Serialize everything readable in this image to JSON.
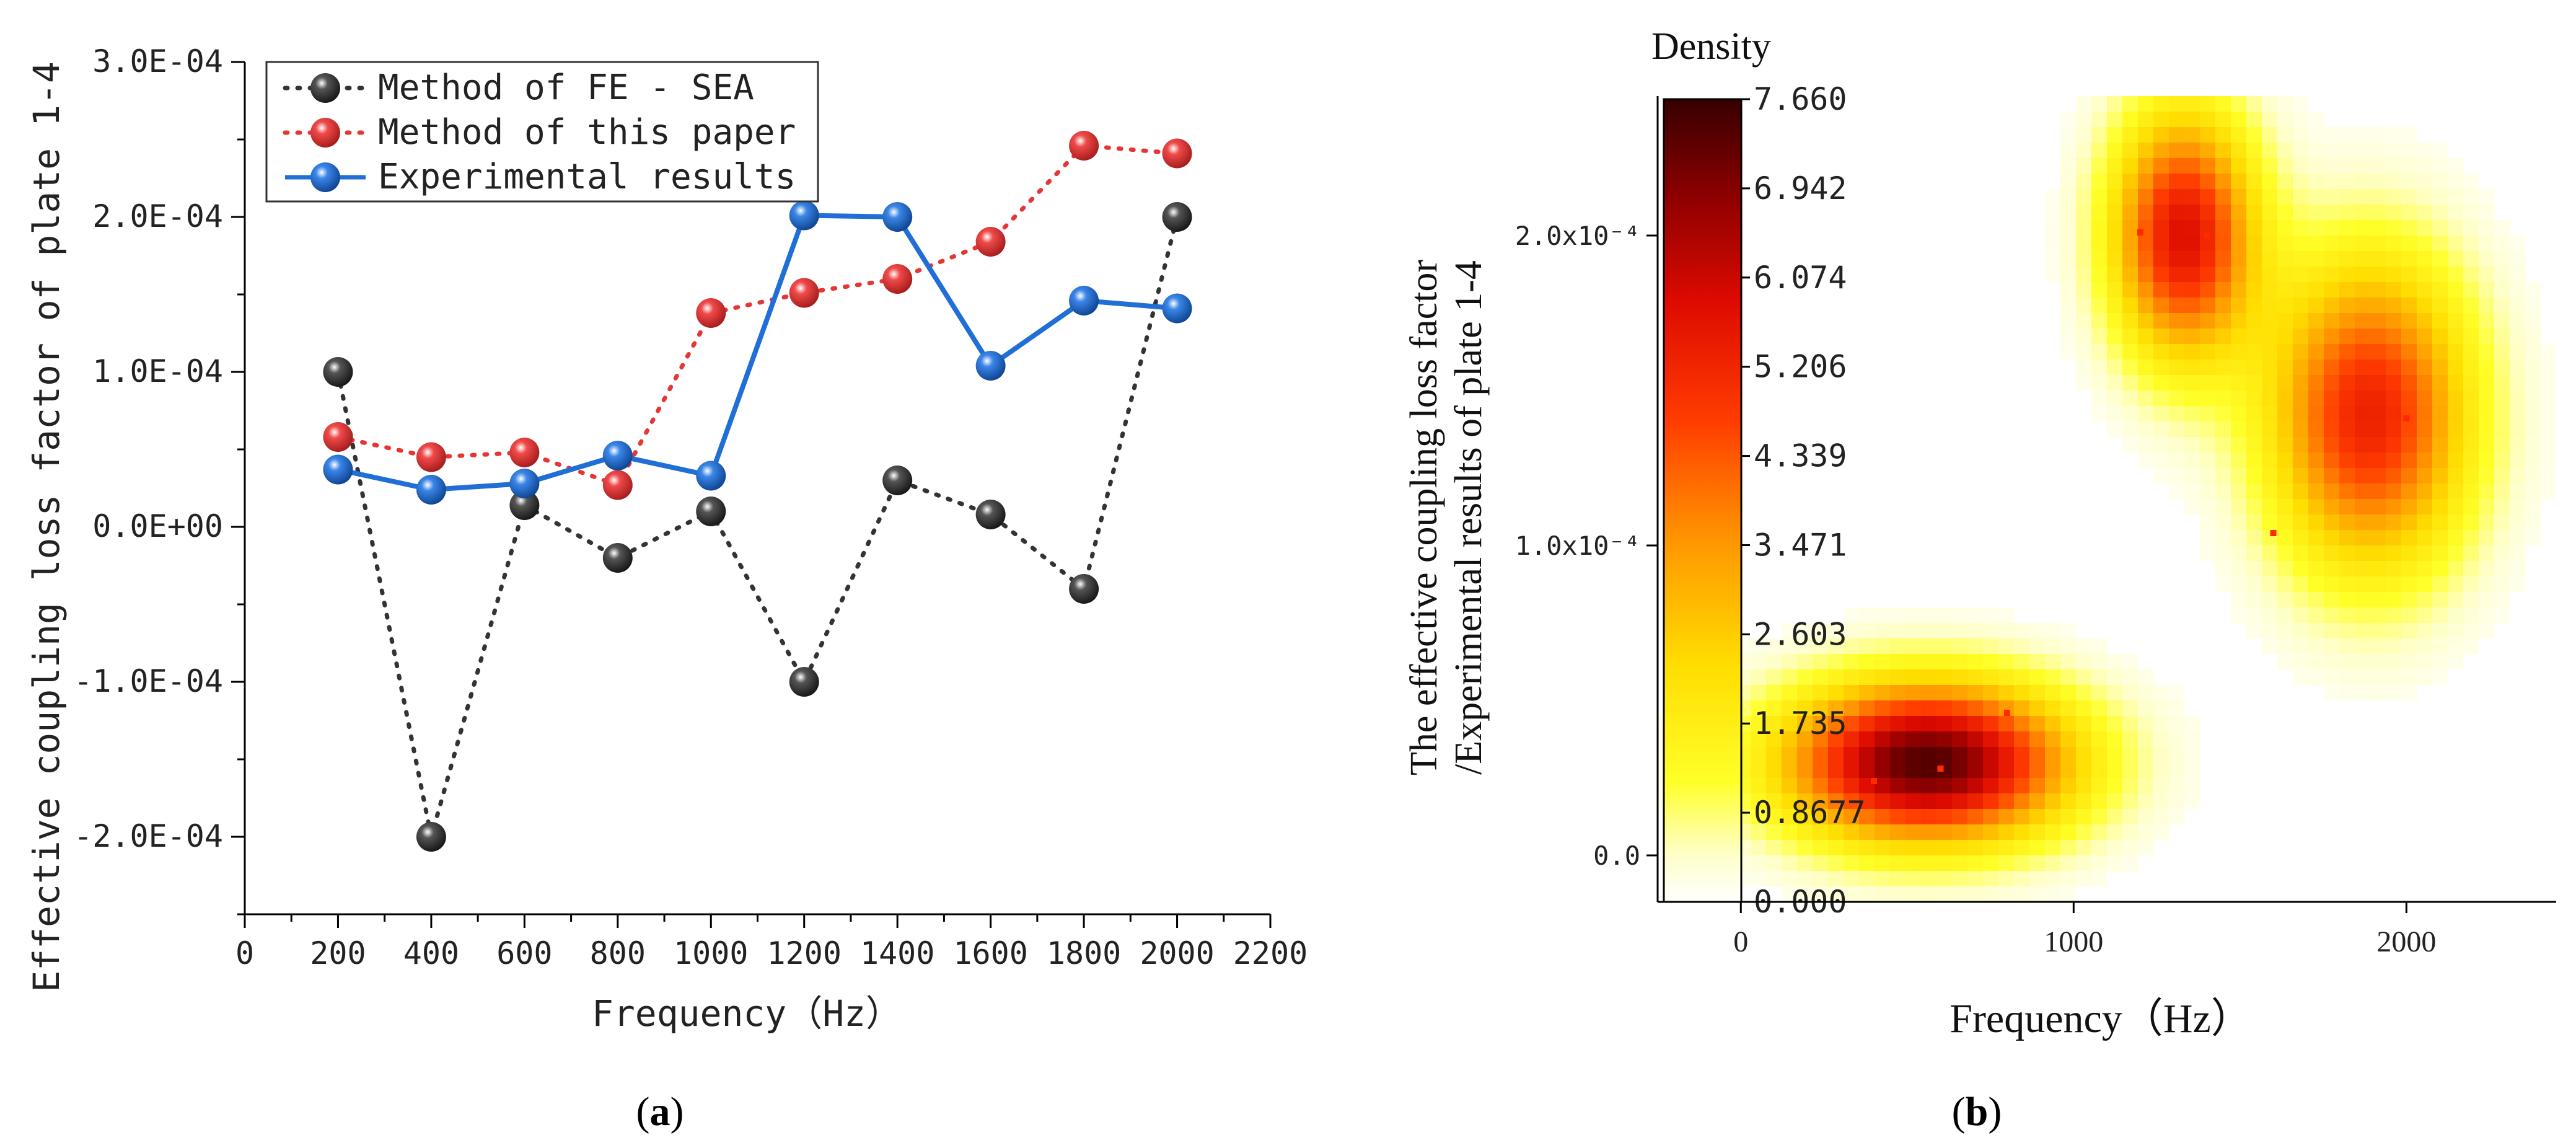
{
  "panel_labels": [
    "a",
    "b"
  ],
  "chart_data": [
    {
      "type": "line",
      "xlabel": "Frequency（Hz）",
      "ylabel": "Effective coupling loss factor of plate 1-4",
      "xlim": [
        0,
        2200
      ],
      "ylim": [
        -0.00025,
        0.0003
      ],
      "x_ticks": [
        0,
        200,
        400,
        600,
        800,
        1000,
        1200,
        1400,
        1600,
        1800,
        2000,
        2200
      ],
      "x_tick_labels": [
        "0",
        "200",
        "400",
        "600",
        "800",
        "1000",
        "1200",
        "1400",
        "1600",
        "1800",
        "2000",
        "2200"
      ],
      "y_ticks": [
        -0.0002,
        -0.0001,
        0,
        0.0001,
        0.0002,
        0.0003
      ],
      "y_tick_labels": [
        "-2.0E-04",
        "-1.0E-04",
        "0.0E+00",
        "1.0E-04",
        "2.0E-04",
        "3.0E-04"
      ],
      "legend_position": "top-left",
      "x": [
        200,
        400,
        600,
        800,
        1000,
        1200,
        1400,
        1600,
        1800,
        2000
      ],
      "series": [
        {
          "name": "Method of FE - SEA",
          "color": "#333333",
          "line_style": "dotted",
          "values": [
            0.0001,
            -0.0002,
            1.4e-05,
            -2e-05,
            1e-05,
            -0.0001,
            3e-05,
            8e-06,
            -4e-05,
            0.0002
          ]
        },
        {
          "name": "Method of this paper",
          "color": "#e63535",
          "line_style": "dotted",
          "values": [
            5.8e-05,
            4.5e-05,
            4.8e-05,
            2.7e-05,
            0.000138,
            0.000151,
            0.00016,
            0.000184,
            0.000246,
            0.000241
          ]
        },
        {
          "name": "Experimental results",
          "color": "#1f6fd6",
          "line_style": "solid",
          "values": [
            3.7e-05,
            2.4e-05,
            2.8e-05,
            4.6e-05,
            3.3e-05,
            0.000201,
            0.0002,
            0.000104,
            0.000146,
            0.000141
          ]
        }
      ]
    },
    {
      "type": "heatmap",
      "title": "Density",
      "xlabel": "Frequency（Hz）",
      "ylabel_line1": "The effective coupling loss factor",
      "ylabel_line2": "/Experimental results of plate 1-4",
      "xlim": [
        -250,
        2450
      ],
      "ylim": [
        -1.5e-05,
        0.000245
      ],
      "x_ticks": [
        0,
        1000,
        2000
      ],
      "x_tick_labels": [
        "0",
        "1000",
        "2000"
      ],
      "y_ticks": [
        0,
        0.0001,
        0.0002
      ],
      "y_tick_labels": [
        "0.0",
        "1.0x10⁻⁴",
        "2.0x10⁻⁴"
      ],
      "colorbar_ticks": [
        "7.660",
        "6.942",
        "6.074",
        "5.206",
        "4.339",
        "3.471",
        "2.603",
        "1.735",
        "0.8677",
        "0.000"
      ],
      "colorbar_range": [
        0,
        7.66
      ],
      "clusters": [
        {
          "x": 560,
          "y": 3e-05,
          "peak": 7.4,
          "sx": 300,
          "sy": 1.8e-05
        },
        {
          "x": 1330,
          "y": 0.0002,
          "peak": 5.6,
          "sx": 150,
          "sy": 2.8e-05
        },
        {
          "x": 1890,
          "y": 0.000142,
          "peak": 5.2,
          "sx": 210,
          "sy": 3.5e-05
        }
      ],
      "sample_points": [
        {
          "x": 400,
          "y": 2.4e-05
        },
        {
          "x": 600,
          "y": 2.8e-05
        },
        {
          "x": 800,
          "y": 4.6e-05
        },
        {
          "x": 1200,
          "y": 0.000201
        },
        {
          "x": 1400,
          "y": 0.0002
        },
        {
          "x": 1600,
          "y": 0.000104
        },
        {
          "x": 2000,
          "y": 0.000141
        }
      ]
    }
  ]
}
